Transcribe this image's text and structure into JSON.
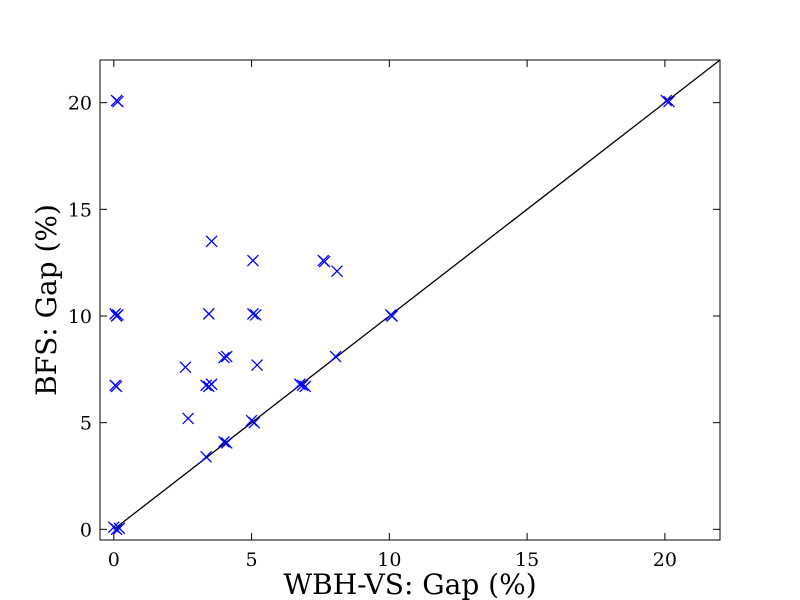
{
  "chart_data": {
    "type": "scatter",
    "xlabel": "WBH-VS: Gap (%)",
    "ylabel": "BFS: Gap (%)",
    "xlim": [
      -0.5,
      22
    ],
    "ylim": [
      -0.5,
      22
    ],
    "xticks": [
      0,
      5,
      10,
      15,
      20
    ],
    "yticks": [
      0,
      5,
      10,
      15,
      20
    ],
    "grid": false,
    "legend": "none",
    "marker": "x",
    "marker_color": "#0000ff",
    "reference_line": {
      "from": [
        0,
        0
      ],
      "to": [
        22,
        22
      ],
      "color": "#000000"
    },
    "points": [
      {
        "x": 0.1,
        "y": 20.1
      },
      {
        "x": 0.15,
        "y": 20.05
      },
      {
        "x": 0.05,
        "y": 10.1
      },
      {
        "x": 0.1,
        "y": 10.0
      },
      {
        "x": 0.15,
        "y": 10.05
      },
      {
        "x": 0.05,
        "y": 6.75
      },
      {
        "x": 0.1,
        "y": 6.7
      },
      {
        "x": 0.0,
        "y": 0.1
      },
      {
        "x": 0.1,
        "y": 0.0
      },
      {
        "x": 0.2,
        "y": 0.05
      },
      {
        "x": 2.6,
        "y": 7.6
      },
      {
        "x": 2.7,
        "y": 5.2
      },
      {
        "x": 3.35,
        "y": 3.4
      },
      {
        "x": 3.35,
        "y": 6.75
      },
      {
        "x": 3.45,
        "y": 6.7
      },
      {
        "x": 3.55,
        "y": 6.8
      },
      {
        "x": 3.45,
        "y": 10.1
      },
      {
        "x": 3.55,
        "y": 13.5
      },
      {
        "x": 4.0,
        "y": 4.1
      },
      {
        "x": 4.1,
        "y": 4.05
      },
      {
        "x": 4.0,
        "y": 8.05
      },
      {
        "x": 4.1,
        "y": 8.1
      },
      {
        "x": 5.0,
        "y": 5.1
      },
      {
        "x": 5.1,
        "y": 5.0
      },
      {
        "x": 5.05,
        "y": 10.1
      },
      {
        "x": 5.15,
        "y": 10.05
      },
      {
        "x": 5.05,
        "y": 12.6
      },
      {
        "x": 5.2,
        "y": 7.7
      },
      {
        "x": 6.75,
        "y": 6.8
      },
      {
        "x": 6.85,
        "y": 6.75
      },
      {
        "x": 6.95,
        "y": 6.7
      },
      {
        "x": 7.6,
        "y": 12.6
      },
      {
        "x": 7.65,
        "y": 12.55
      },
      {
        "x": 8.05,
        "y": 8.1
      },
      {
        "x": 8.1,
        "y": 12.1
      },
      {
        "x": 10.05,
        "y": 10.05
      },
      {
        "x": 10.1,
        "y": 10.0
      },
      {
        "x": 20.05,
        "y": 20.1
      },
      {
        "x": 20.15,
        "y": 20.05
      }
    ]
  }
}
